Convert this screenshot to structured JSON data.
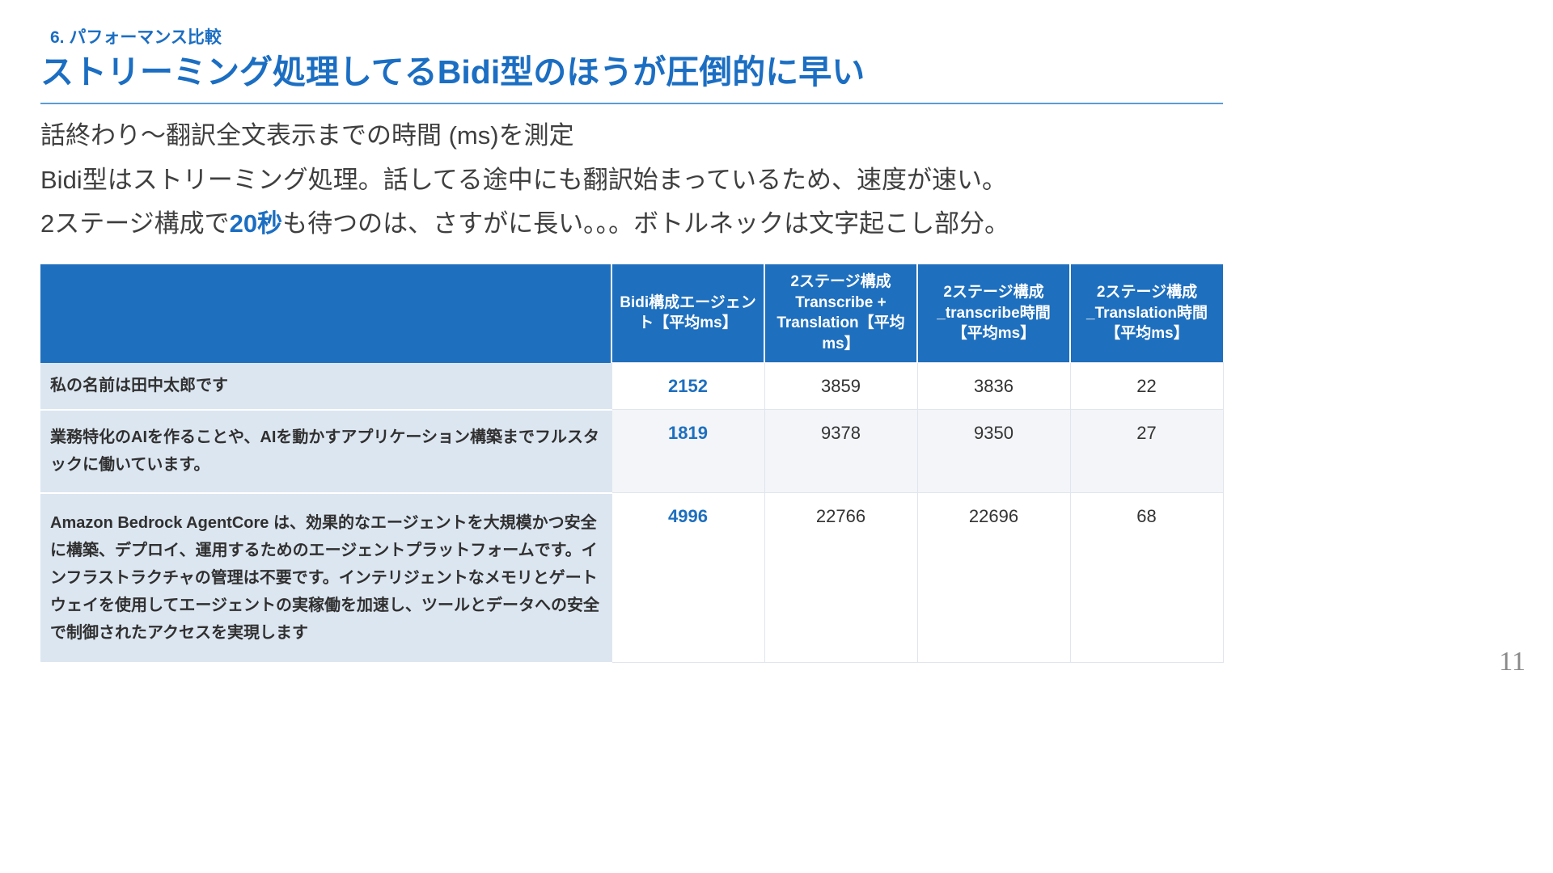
{
  "slide": {
    "kicker": "6. パフォーマンス比較",
    "title": "ストリーミング処理してるBidi型のほうが圧倒的に早い",
    "body": {
      "line1": "話終わり〜翻訳全文表示までの時間 (ms)を測定",
      "line2": "Bidi型はストリーミング処理。話してる途中にも翻訳始まっているため、速度が速い。",
      "line3_pre": "2ステージ構成で",
      "line3_em": "20秒",
      "line3_post": "も待つのは、さすがに長い。。。ボトルネックは文字起こし部分。"
    },
    "page_number": "11"
  },
  "colors": {
    "accent_blue": "#1b6ec2",
    "table_header_bg": "#1e6fbe",
    "row_label_bg": "#dce6f1",
    "title_rule": "#5b9bd5",
    "body_text": "#3f3f3f",
    "page_number": "#8a8a8a"
  },
  "chart_data": {
    "type": "table",
    "columns": [
      "",
      "Bidi構成エージェント【平均ms】",
      "2ステージ構成 Transcribe + Translation【平均ms】",
      "2ステージ構成_transcribe時間【平均ms】",
      "2ステージ構成_Translation時間【平均ms】"
    ],
    "unit": "ms",
    "highlight_column": "Bidi構成エージェント【平均ms】",
    "rows": [
      {
        "label": "私の名前は田中太郎です",
        "values": [
          2152,
          3859,
          3836,
          22
        ]
      },
      {
        "label": "業務特化のAIを作ることや、AIを動かすアプリケーション構築までフルスタックに働いています。",
        "values": [
          1819,
          9378,
          9350,
          27
        ]
      },
      {
        "label": "Amazon Bedrock AgentCore は、効果的なエージェントを大規模かつ安全に構築、デプロイ、運用するためのエージェントプラットフォームです。インフラストラクチャの管理は不要です。インテリジェントなメモリとゲートウェイを使用してエージェントの実稼働を加速し、ツールとデータへの安全で制御されたアクセスを実現します",
        "values": [
          4996,
          22766,
          22696,
          68
        ]
      }
    ]
  }
}
